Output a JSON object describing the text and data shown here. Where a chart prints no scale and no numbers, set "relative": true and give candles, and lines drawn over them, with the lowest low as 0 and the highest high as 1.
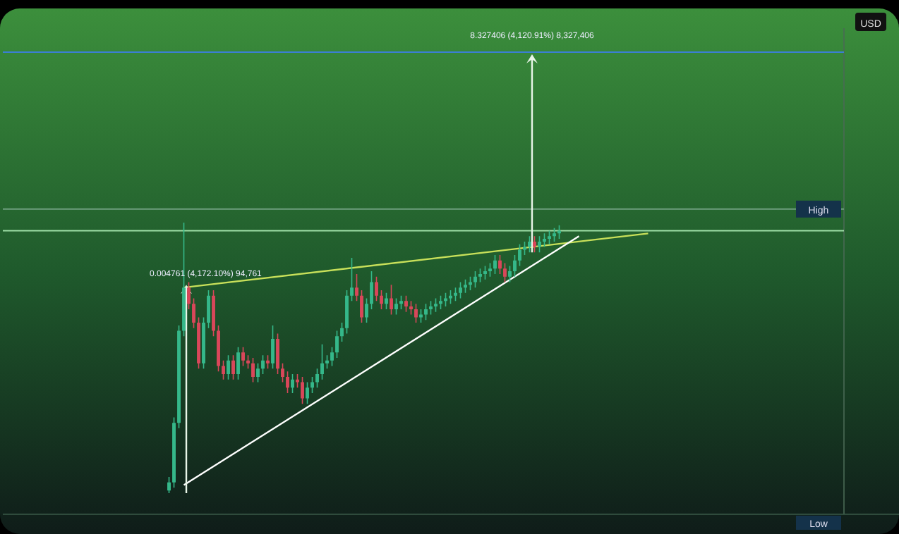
{
  "chart_data": {
    "type": "candlestick",
    "relative": true,
    "categories": [
      null,
      null,
      null,
      null,
      null,
      null,
      null,
      null,
      null,
      null,
      null,
      null,
      null,
      null,
      null,
      null,
      null,
      null,
      null,
      null,
      null,
      null,
      null,
      null,
      null,
      null,
      null,
      null,
      null,
      null,
      null,
      null,
      null,
      null,
      null,
      null,
      null,
      null,
      null,
      null,
      null,
      null,
      null,
      null,
      null,
      null,
      null,
      null,
      null,
      null,
      null,
      null,
      null,
      null,
      null,
      null,
      null,
      null,
      null,
      null,
      null,
      null,
      null,
      null,
      null,
      null,
      null,
      null,
      null,
      null,
      null,
      null,
      null,
      null,
      null,
      null,
      null,
      null,
      null,
      null,
      null,
      null,
      null,
      null,
      null,
      null,
      null,
      null,
      null,
      null,
      null,
      null,
      null,
      null,
      null,
      null,
      null,
      null,
      null,
      null,
      null,
      null,
      null,
      null,
      null,
      null,
      null,
      null,
      null,
      null,
      null,
      null,
      null,
      null,
      null,
      null,
      null,
      null,
      null,
      null,
      null,
      null,
      null,
      null,
      null,
      null,
      null,
      null,
      null,
      null,
      null,
      null,
      null,
      null,
      null,
      null,
      null,
      null,
      null,
      null,
      null,
      null,
      null,
      null,
      null,
      null,
      null,
      null,
      null,
      null,
      null,
      null,
      null,
      null,
      null,
      null,
      null,
      null,
      null,
      null,
      null,
      null,
      null,
      null,
      null,
      null,
      null,
      null,
      null,
      null
    ],
    "ohlc": [
      null,
      null,
      null,
      null,
      null,
      null,
      null,
      null,
      null,
      null,
      null,
      null,
      null,
      null,
      null,
      null,
      null,
      null,
      null,
      null,
      null,
      null,
      null,
      null,
      null,
      null,
      null,
      null,
      null,
      null,
      null,
      null,
      null,
      [
        0.01,
        0.06,
        0,
        0.04
      ],
      [
        0.04,
        0.28,
        0.02,
        0.26
      ],
      [
        0.26,
        0.62,
        0.24,
        0.6
      ],
      [
        0.6,
        1,
        0.58,
        0.76
      ],
      [
        0.76,
        0.78,
        0.68,
        0.7
      ],
      [
        0.7,
        0.72,
        0.61,
        0.63
      ],
      [
        0.63,
        0.65,
        0.46,
        0.48
      ],
      [
        0.48,
        0.65,
        0.46,
        0.63
      ],
      [
        0.63,
        0.75,
        0.61,
        0.73
      ],
      [
        0.73,
        0.75,
        0.58,
        0.6
      ],
      [
        0.6,
        0.62,
        0.45,
        0.47
      ],
      [
        0.47,
        0.49,
        0.42,
        0.44
      ],
      [
        0.44,
        0.51,
        0.42,
        0.49
      ],
      [
        0.49,
        0.51,
        0.42,
        0.44
      ],
      [
        0.44,
        0.54,
        0.42,
        0.52
      ],
      [
        0.52,
        0.54,
        0.47,
        0.49
      ],
      [
        0.49,
        0.51,
        0.46,
        0.48
      ],
      [
        0.48,
        0.5,
        0.41,
        0.43
      ],
      [
        0.43,
        0.48,
        0.41,
        0.46
      ],
      [
        0.46,
        0.51,
        0.44,
        0.49
      ],
      [
        0.49,
        0.51,
        0.46,
        0.48
      ],
      [
        0.48,
        0.62,
        0.46,
        0.57
      ],
      [
        0.57,
        0.59,
        0.44,
        0.46
      ],
      [
        0.46,
        0.48,
        0.41,
        0.43
      ],
      [
        0.43,
        0.45,
        0.37,
        0.39
      ],
      [
        0.39,
        0.44,
        0.37,
        0.42
      ],
      [
        0.42,
        0.44,
        0.39,
        0.41
      ],
      [
        0.41,
        0.43,
        0.33,
        0.35
      ],
      [
        0.35,
        0.41,
        0.33,
        0.39
      ],
      [
        0.39,
        0.43,
        0.37,
        0.41
      ],
      [
        0.41,
        0.46,
        0.39,
        0.44
      ],
      [
        0.44,
        0.55,
        0.42,
        0.48
      ],
      [
        0.48,
        0.51,
        0.46,
        0.49
      ],
      [
        0.49,
        0.54,
        0.47,
        0.52
      ],
      [
        0.52,
        0.6,
        0.5,
        0.58
      ],
      [
        0.58,
        0.63,
        0.56,
        0.61
      ],
      [
        0.61,
        0.75,
        0.59,
        0.73
      ],
      [
        0.73,
        0.87,
        0.71,
        0.76
      ],
      [
        0.76,
        0.81,
        0.71,
        0.73
      ],
      [
        0.73,
        0.75,
        0.63,
        0.65
      ],
      [
        0.65,
        0.72,
        0.63,
        0.7
      ],
      [
        0.7,
        0.82,
        0.68,
        0.78
      ],
      [
        0.78,
        0.8,
        0.71,
        0.73
      ],
      [
        0.73,
        0.75,
        0.68,
        0.7
      ],
      [
        0.7,
        0.74,
        0.68,
        0.72
      ],
      [
        0.72,
        0.77,
        0.66,
        0.68
      ],
      [
        0.68,
        0.72,
        0.66,
        0.7
      ],
      [
        0.7,
        0.73,
        0.68,
        0.71
      ],
      [
        0.71,
        0.73,
        0.67,
        0.69
      ],
      [
        0.69,
        0.71,
        0.66,
        0.68
      ],
      [
        0.68,
        0.7,
        0.63,
        0.65
      ],
      [
        0.65,
        0.68,
        0.63,
        0.66
      ],
      [
        0.66,
        0.7,
        0.64,
        0.68
      ],
      [
        0.68,
        0.71,
        0.66,
        0.69
      ],
      [
        0.69,
        0.72,
        0.67,
        0.7
      ],
      [
        0.7,
        0.73,
        0.68,
        0.71
      ],
      [
        0.71,
        0.74,
        0.69,
        0.72
      ],
      [
        0.72,
        0.75,
        0.7,
        0.73
      ],
      [
        0.73,
        0.76,
        0.71,
        0.74
      ],
      [
        0.74,
        0.78,
        0.72,
        0.76
      ],
      [
        0.76,
        0.79,
        0.74,
        0.77
      ],
      [
        0.77,
        0.8,
        0.75,
        0.78
      ],
      [
        0.78,
        0.82,
        0.76,
        0.8
      ],
      [
        0.8,
        0.83,
        0.78,
        0.81
      ],
      [
        0.81,
        0.84,
        0.79,
        0.82
      ],
      [
        0.82,
        0.85,
        0.8,
        0.83
      ],
      [
        0.83,
        0.88,
        0.81,
        0.86
      ],
      [
        0.86,
        0.88,
        0.81,
        0.83
      ],
      [
        0.83,
        0.85,
        0.78,
        0.8
      ],
      [
        0.8,
        0.84,
        0.78,
        0.82
      ],
      [
        0.82,
        0.88,
        0.8,
        0.86
      ],
      [
        0.86,
        0.92,
        0.84,
        0.9
      ],
      [
        0.9,
        0.93,
        0.88,
        0.91
      ],
      [
        0.91,
        0.95,
        0.89,
        0.93
      ],
      [
        0.93,
        0.95,
        0.89,
        0.91
      ],
      [
        0.91,
        0.95,
        0.89,
        0.93
      ],
      [
        0.93,
        0.96,
        0.91,
        0.94
      ],
      [
        0.94,
        0.97,
        0.92,
        0.95
      ],
      [
        0.95,
        0.98,
        0.93,
        0.96
      ],
      [
        0.96,
        0.99,
        0.94,
        0.97
      ],
      null,
      null,
      null,
      null,
      null,
      null,
      null,
      null,
      null,
      null,
      null,
      null,
      null,
      null,
      null,
      null,
      null,
      null,
      null,
      null,
      null,
      null,
      null,
      null,
      null,
      null,
      null,
      null,
      null,
      null,
      null,
      null,
      null,
      null,
      null,
      null,
      null,
      null,
      null,
      null,
      null,
      null,
      null,
      null,
      null,
      null,
      null,
      null,
      null,
      null,
      null,
      null,
      null,
      null,
      null,
      null,
      null
    ],
    "series": [
      {
        "type": "line",
        "color": "#c8e05a",
        "values": [
          null,
          null,
          null,
          null,
          null,
          null,
          null,
          null,
          null,
          null,
          null,
          null,
          null,
          null,
          null,
          null,
          null,
          null,
          null,
          null,
          null,
          null,
          null,
          null,
          null,
          null,
          null,
          null,
          null,
          null,
          null,
          null,
          null,
          null,
          null,
          null,
          0.76,
          null,
          null,
          null,
          null,
          null,
          null,
          null,
          null,
          null,
          null,
          null,
          null,
          null,
          null,
          null,
          null,
          null,
          null,
          null,
          null,
          null,
          null,
          null,
          null,
          null,
          null,
          null,
          null,
          null,
          null,
          null,
          null,
          null,
          null,
          null,
          null,
          null,
          null,
          null,
          null,
          null,
          null,
          null,
          null,
          null,
          null,
          null,
          null,
          null,
          null,
          null,
          null,
          null,
          null,
          null,
          null,
          null,
          null,
          null,
          null,
          null,
          null,
          null,
          null,
          null,
          null,
          null,
          null,
          null,
          null,
          null,
          null,
          null,
          null,
          null,
          null,
          null,
          null,
          null,
          null,
          null,
          null,
          null,
          null,
          null,
          null,
          null,
          null,
          null,
          null,
          null,
          null,
          null,
          0.96,
          null,
          null,
          null,
          null,
          null,
          null,
          null,
          null,
          null,
          null,
          null,
          null,
          null,
          null,
          null,
          null,
          null,
          null,
          null,
          null,
          null,
          null,
          null,
          null,
          null,
          null,
          null,
          null,
          null,
          null,
          null,
          null,
          null,
          null,
          null,
          null,
          null,
          null,
          null
        ]
      },
      {
        "type": "line",
        "color": "#ffffff",
        "values": [
          null,
          null,
          null,
          null,
          null,
          null,
          null,
          null,
          null,
          null,
          null,
          null,
          null,
          null,
          null,
          null,
          null,
          null,
          null,
          null,
          null,
          null,
          null,
          null,
          null,
          null,
          null,
          null,
          null,
          null,
          null,
          null,
          null,
          null,
          null,
          null,
          0.03,
          null,
          null,
          null,
          null,
          null,
          null,
          null,
          null,
          null,
          null,
          null,
          null,
          null,
          null,
          null,
          null,
          null,
          null,
          null,
          null,
          null,
          null,
          null,
          null,
          null,
          null,
          null,
          null,
          null,
          null,
          null,
          null,
          null,
          null,
          null,
          null,
          null,
          null,
          null,
          null,
          null,
          null,
          null,
          null,
          null,
          null,
          null,
          null,
          null,
          null,
          null,
          null,
          null,
          null,
          null,
          null,
          null,
          null,
          null,
          null,
          null,
          null,
          null,
          null,
          null,
          null,
          null,
          null,
          null,
          null,
          null,
          null,
          null,
          null,
          null,
          null,
          null,
          null,
          null,
          0.95,
          null,
          null,
          null,
          null,
          null,
          null,
          null,
          null,
          null,
          null,
          null,
          null,
          null,
          null,
          null,
          null,
          null,
          null,
          null,
          null,
          null,
          null,
          null,
          null,
          null,
          null,
          null,
          null,
          null,
          null,
          null,
          null,
          null,
          null,
          null,
          null,
          null,
          null,
          null,
          null,
          null,
          null,
          null,
          null,
          null,
          null,
          null,
          null,
          null,
          null,
          null,
          null,
          null
        ]
      }
    ],
    "ref_lines": [
      {
        "axis": "y",
        "value": 1.63,
        "color": "#3b7fd4"
      },
      {
        "axis": "y",
        "value": 1.05,
        "label": "High",
        "color": "#6f9f7f"
      },
      {
        "axis": "y",
        "value": 0.97,
        "color": "#9fe0a8"
      }
    ],
    "annotations": [
      "USD",
      "8.327406 (4,120.91%) 8,327,406",
      "0.004761 (4,172.10%) 94,761",
      "Low"
    ]
  }
}
